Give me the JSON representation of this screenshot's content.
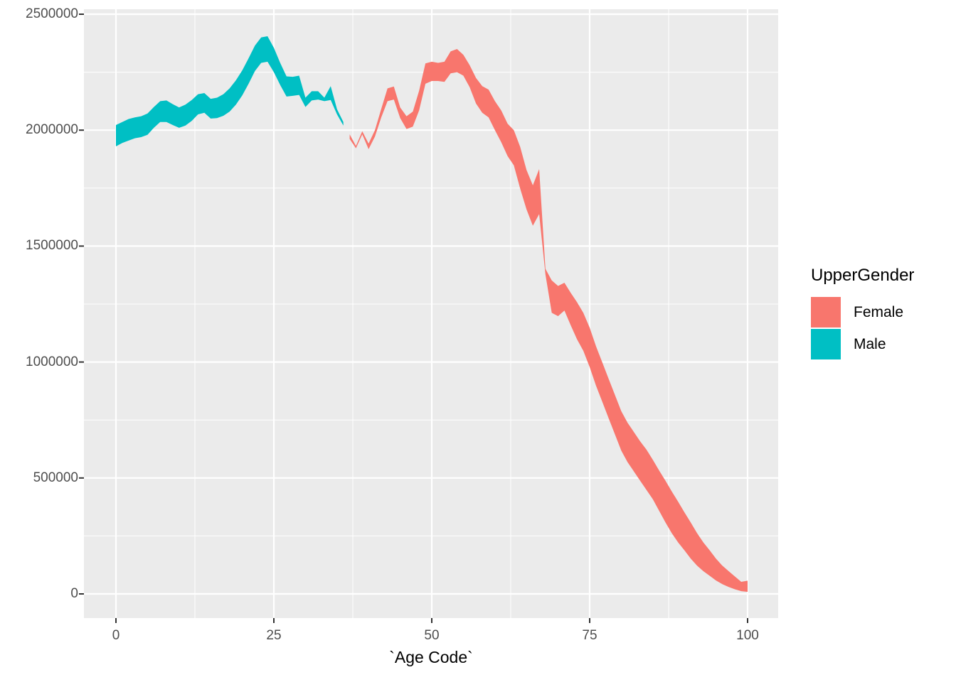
{
  "figure": {
    "x_axis_title": "`Age Code`"
  },
  "axes": {
    "x": {
      "tick_labels": [
        "0",
        "25",
        "50",
        "75",
        "100"
      ],
      "tick_values": [
        0,
        25,
        50,
        75,
        100
      ],
      "minor_values": [
        12.5,
        37.5,
        62.5,
        87.5
      ]
    },
    "y": {
      "tick_labels": [
        "2500000",
        "2000000",
        "1500000",
        "1000000",
        "500000",
        "0"
      ],
      "tick_values": [
        2500000,
        2000000,
        1500000,
        1000000,
        500000,
        0
      ],
      "minor_values": [
        250000,
        750000,
        1250000,
        1750000,
        2250000
      ]
    }
  },
  "legend": {
    "title": "UpperGender",
    "items": [
      {
        "label": "Female",
        "color": "#F8766D"
      },
      {
        "label": "Male",
        "color": "#00BFC4"
      }
    ]
  },
  "colors": {
    "panel_background": "#EBEBEB",
    "gridline": "#FFFFFF",
    "tick_mark": "#333333",
    "tick_text": "#4D4D4D",
    "female": "#F8766D",
    "male": "#00BFC4"
  },
  "chart_data": {
    "type": "area",
    "subtype": "ribbon-band-min-max",
    "title": "",
    "xlabel": "`Age Code`",
    "ylabel": "",
    "xlim": [
      -5,
      105
    ],
    "ylim": [
      0,
      2500000
    ],
    "grid": true,
    "legend_position": "right",
    "legend_title": "UpperGender",
    "series": [
      {
        "name": "Male",
        "color": "#00BFC4",
        "ages": [
          0,
          1,
          2,
          3,
          4,
          5,
          6,
          7,
          8,
          9,
          10,
          11,
          12,
          13,
          14,
          15,
          16,
          17,
          18,
          19,
          20,
          21,
          22,
          23,
          24,
          25,
          26,
          27,
          28,
          29,
          30,
          31,
          32,
          33,
          34,
          35,
          36
        ],
        "lower": [
          1930000,
          1945000,
          1955000,
          1965000,
          1970000,
          1980000,
          2010000,
          2035000,
          2035000,
          2022000,
          2010000,
          2020000,
          2040000,
          2068000,
          2075000,
          2050000,
          2052000,
          2062000,
          2080000,
          2110000,
          2150000,
          2200000,
          2255000,
          2290000,
          2295000,
          2250000,
          2195000,
          2145000,
          2148000,
          2152000,
          2100000,
          2128000,
          2132000,
          2125000,
          2130000,
          2068000,
          2020000
        ],
        "upper": [
          2022000,
          2035000,
          2048000,
          2055000,
          2060000,
          2072000,
          2100000,
          2125000,
          2128000,
          2112000,
          2098000,
          2110000,
          2130000,
          2155000,
          2160000,
          2135000,
          2140000,
          2155000,
          2180000,
          2215000,
          2258000,
          2310000,
          2365000,
          2400000,
          2405000,
          2355000,
          2290000,
          2232000,
          2230000,
          2235000,
          2140000,
          2168000,
          2168000,
          2140000,
          2190000,
          2090000,
          2035000
        ]
      },
      {
        "name": "Female",
        "color": "#F8766D",
        "ages": [
          37,
          38,
          39,
          40,
          41,
          42,
          43,
          44,
          45,
          46,
          47,
          48,
          49,
          50,
          51,
          52,
          53,
          54,
          55,
          56,
          57,
          58,
          59,
          60,
          61,
          62,
          63,
          64,
          65,
          66,
          67,
          68,
          69,
          70,
          71,
          72,
          73,
          74,
          75,
          76,
          77,
          78,
          79,
          80,
          81,
          82,
          83,
          84,
          85,
          86,
          87,
          88,
          89,
          90,
          91,
          92,
          93,
          94,
          95,
          96,
          97,
          98,
          99,
          100
        ],
        "lower": [
          1962000,
          1922000,
          1982000,
          1918000,
          1972000,
          2055000,
          2125000,
          2132000,
          2052000,
          2005000,
          2015000,
          2085000,
          2200000,
          2212000,
          2212000,
          2208000,
          2245000,
          2250000,
          2235000,
          2185000,
          2115000,
          2075000,
          2055000,
          2000000,
          1948000,
          1888000,
          1848000,
          1748000,
          1658000,
          1588000,
          1638000,
          1378000,
          1212000,
          1198000,
          1222000,
          1158000,
          1098000,
          1048000,
          978000,
          898000,
          828000,
          758000,
          688000,
          618000,
          568000,
          528000,
          488000,
          448000,
          408000,
          358000,
          308000,
          262000,
          222000,
          188000,
          152000,
          122000,
          98000,
          78000,
          58000,
          42000,
          30000,
          20000,
          12000,
          9000
        ],
        "upper": [
          1982000,
          1932000,
          1995000,
          1942000,
          2000000,
          2092000,
          2180000,
          2188000,
          2098000,
          2060000,
          2080000,
          2170000,
          2288000,
          2295000,
          2290000,
          2295000,
          2340000,
          2350000,
          2325000,
          2280000,
          2225000,
          2190000,
          2175000,
          2125000,
          2085000,
          2028000,
          2000000,
          1928000,
          1828000,
          1762000,
          1832000,
          1402000,
          1352000,
          1328000,
          1342000,
          1298000,
          1258000,
          1212000,
          1148000,
          1068000,
          998000,
          928000,
          858000,
          788000,
          738000,
          698000,
          658000,
          622000,
          578000,
          532000,
          488000,
          442000,
          398000,
          352000,
          308000,
          262000,
          222000,
          188000,
          152000,
          122000,
          98000,
          75000,
          52000,
          57000
        ]
      }
    ]
  }
}
